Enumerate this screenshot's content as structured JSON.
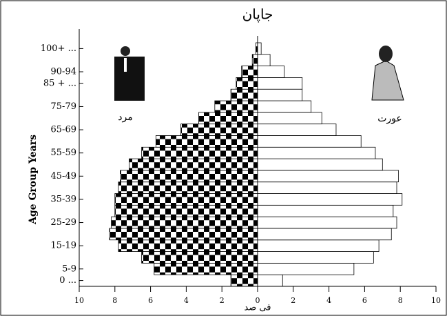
{
  "chart_data": {
    "type": "pyramid",
    "title": "جاپان",
    "x_label": "فی صد",
    "y_label": "Age Group Years",
    "categories": [
      "0 ...",
      "5-9",
      null,
      "15-19",
      null,
      "25-29",
      null,
      "35-39",
      null,
      "45-49",
      null,
      "55-59",
      null,
      "65-69",
      null,
      "75-79",
      null,
      "85 + ...",
      "90-94",
      null,
      "100+ ..."
    ],
    "series": [
      {
        "name": "مرد",
        "color": "#000000",
        "values": [
          -1.5,
          -5.8,
          -6.5,
          -7.8,
          -8.3,
          -8.2,
          -8.0,
          -8.0,
          -7.8,
          -7.7,
          -7.2,
          -6.5,
          -5.7,
          -4.3,
          -3.3,
          -2.4,
          -1.5,
          -1.2,
          -0.9,
          -0.3,
          -0.1
        ]
      },
      {
        "name": "عورت",
        "color": "#ffffff",
        "values": [
          1.4,
          5.4,
          6.5,
          6.8,
          7.5,
          7.8,
          7.6,
          8.1,
          7.8,
          7.9,
          7.0,
          6.6,
          5.8,
          4.4,
          3.6,
          3.0,
          2.5,
          2.5,
          1.5,
          0.7,
          0.2
        ]
      }
    ],
    "xlim": [
      -10,
      10
    ],
    "xticks": [
      {
        "value": -10,
        "label": "10"
      },
      {
        "value": -8,
        "label": "8"
      },
      {
        "value": -6,
        "label": "6"
      },
      {
        "value": -4,
        "label": "4"
      },
      {
        "value": -2,
        "label": "2"
      },
      0,
      2,
      4,
      6,
      8,
      10
    ]
  }
}
